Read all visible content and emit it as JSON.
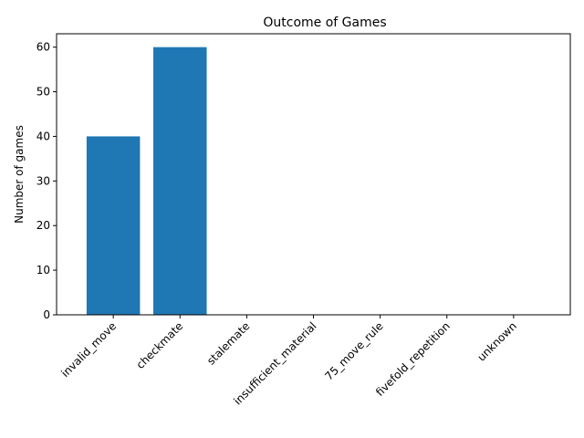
{
  "chart_data": {
    "type": "bar",
    "title": "Outcome of Games",
    "xlabel": "",
    "ylabel": "Number of games",
    "categories": [
      "invalid_move",
      "checkmate",
      "stalemate",
      "insufficient_material",
      "75_move_rule",
      "fivefold_repetition",
      "unknown"
    ],
    "values": [
      40,
      60,
      0,
      0,
      0,
      0,
      0
    ],
    "ylim": [
      0,
      63
    ],
    "yticks": [
      0,
      10,
      20,
      30,
      40,
      50,
      60
    ],
    "grid": false,
    "bar_color": "#1f77b4"
  }
}
